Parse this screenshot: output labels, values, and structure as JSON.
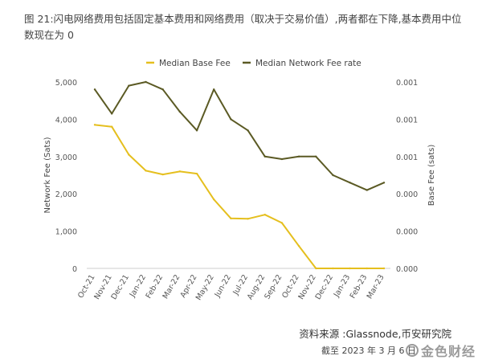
{
  "caption": "图 21:闪电网络费用包括固定基本费用和网络费用（取决于交易价值）,两者都在下降,基本费用中位数现在为 0",
  "source": "资料来源 :Glassnode,币安研究院",
  "date_note": "截至 2023 年 3 月 6 日",
  "watermark": "金色财经",
  "chart_data": {
    "type": "line",
    "categories": [
      "Oct-21",
      "Nov-21",
      "Dec-21",
      "Jan-22",
      "Feb-22",
      "Mar-22",
      "Apr-22",
      "May-22",
      "Jun-22",
      "Jul-22",
      "Aug-22",
      "Sep-22",
      "Oct-22",
      "Nov-22",
      "Dec-22",
      "Jan-23",
      "Feb-23",
      "Mar-23"
    ],
    "series": [
      {
        "name": "Median Base Fee",
        "color": "#e5bf1e",
        "axis": "left",
        "values": [
          3850,
          3800,
          3050,
          2620,
          2520,
          2600,
          2540,
          1850,
          1340,
          1330,
          1440,
          1220,
          600,
          0,
          0,
          0,
          0,
          0
        ]
      },
      {
        "name": "Median Network Fee rate",
        "color": "#5b5a24",
        "axis": "right",
        "values": [
          4800,
          4150,
          4900,
          5000,
          4800,
          4200,
          3700,
          4800,
          4000,
          3700,
          3000,
          2930,
          3000,
          3000,
          2500,
          2300,
          2100,
          2300
        ]
      }
    ],
    "xlabel": "",
    "ylabel_left": "Network Fee (Sats)",
    "ylabel_right": "Base Fee (sats)",
    "ylim": [
      0,
      5000
    ],
    "left_ticks": [
      "0",
      "1,000",
      "2,000",
      "3,000",
      "4,000",
      "5,000"
    ],
    "right_ticks": [
      "0.000",
      "0.000",
      "0.000",
      "0.001",
      "0.001",
      "0.001"
    ],
    "legend_position": "top",
    "grid": false
  }
}
